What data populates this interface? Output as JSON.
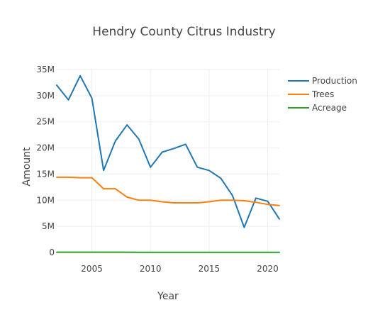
{
  "chart_data": {
    "type": "line",
    "title": "Hendry County Citrus Industry",
    "xlabel": "Year",
    "ylabel": "Amount",
    "xlim": [
      2002,
      2021
    ],
    "ylim": [
      0,
      35000000
    ],
    "x_ticks": [
      2005,
      2010,
      2015,
      2020
    ],
    "x_tick_labels": [
      "2005",
      "2010",
      "2015",
      "2020"
    ],
    "y_ticks": [
      0,
      5000000,
      10000000,
      15000000,
      20000000,
      25000000,
      30000000,
      35000000
    ],
    "y_tick_labels": [
      "0",
      "5M",
      "10M",
      "15M",
      "20M",
      "25M",
      "30M",
      "35M"
    ],
    "grid": true,
    "legend_position": "top-right",
    "x": [
      2002,
      2003,
      2004,
      2005,
      2006,
      2007,
      2008,
      2009,
      2010,
      2011,
      2012,
      2013,
      2014,
      2015,
      2016,
      2017,
      2018,
      2019,
      2020,
      2021
    ],
    "series": [
      {
        "name": "Production",
        "color": "#1f77b4",
        "values": [
          32000000,
          29200000,
          33800000,
          29500000,
          15700000,
          21300000,
          24400000,
          21700000,
          16300000,
          19200000,
          19900000,
          20700000,
          16300000,
          15700000,
          14200000,
          10900000,
          4800000,
          10400000,
          9800000,
          6400000
        ]
      },
      {
        "name": "Trees",
        "color": "#ff7f0e",
        "values": [
          14400000,
          14400000,
          14300000,
          14300000,
          12200000,
          12200000,
          10600000,
          10000000,
          10000000,
          9700000,
          9500000,
          9500000,
          9500000,
          9700000,
          10000000,
          10000000,
          9900000,
          9600000,
          9200000,
          9000000
        ]
      },
      {
        "name": "Acreage",
        "color": "#2ca02c",
        "values": [
          55000,
          54000,
          54000,
          53000,
          52000,
          50000,
          48000,
          46000,
          44000,
          43000,
          42000,
          41000,
          40000,
          39000,
          38000,
          37000,
          36000,
          35000,
          34000,
          33000
        ]
      }
    ]
  }
}
